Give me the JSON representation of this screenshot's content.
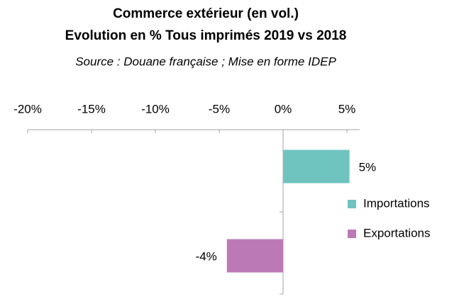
{
  "chart_data": {
    "type": "barh",
    "title": "Commerce extérieur (en vol.)",
    "subtitle": "Evolution en %  Tous imprimés   2019 vs 2018",
    "annotation": "Source : Douane française ; Mise en forme IDEP",
    "categories": [
      null,
      null
    ],
    "series": [
      {
        "name": "Importations",
        "color": "#70c4c0",
        "values": [
          5.2,
          null
        ],
        "value_labels": [
          "5%",
          null
        ]
      },
      {
        "name": "Exportations",
        "color": "#bb7ab5",
        "values": [
          null,
          -4.4
        ],
        "value_labels": [
          null,
          "-4%"
        ]
      }
    ],
    "xlim": [
      -20,
      6
    ],
    "xticks": [
      {
        "value": -20,
        "label": "-20%"
      },
      {
        "value": -15,
        "label": "-15%"
      },
      {
        "value": -10,
        "label": "-10%"
      },
      {
        "value": -5,
        "label": "-5%"
      },
      {
        "value": 0,
        "label": "0%"
      },
      {
        "value": 5,
        "label": "5%"
      }
    ],
    "legend": "right"
  }
}
